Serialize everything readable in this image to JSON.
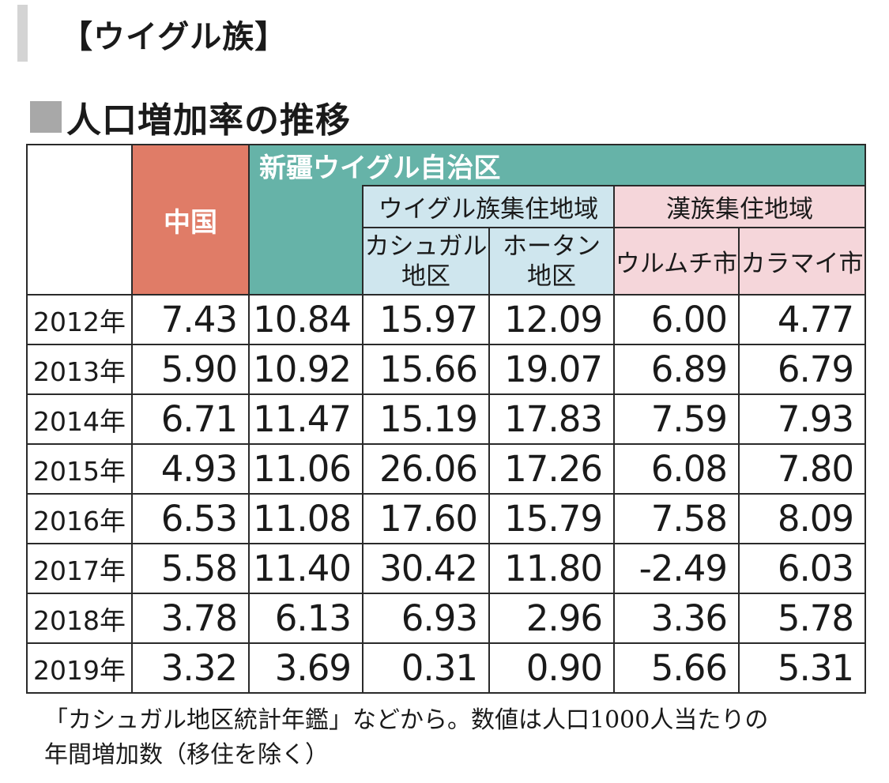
{
  "header": {
    "title": "【ウイグル族】"
  },
  "subtitle": "人口増加率の推移",
  "chart_data": {
    "type": "table",
    "title": "人口増加率の推移",
    "column_groups": {
      "china": "中国",
      "xinjiang": "新疆ウイグル自治区",
      "uyghur_region": "ウイグル族集住地域",
      "han_region": "漢族集住地域"
    },
    "columns": {
      "kashgar_line1": "カシュガル",
      "kashgar_line2": "地区",
      "hotan_line1": "ホータン",
      "hotan_line2": "地区",
      "urumqi": "ウルムチ市",
      "karamay": "カラマイ市"
    },
    "rows": [
      {
        "year": "2012年",
        "values": [
          "7.43",
          "10.84",
          "15.97",
          "12.09",
          "6.00",
          "4.77"
        ]
      },
      {
        "year": "2013年",
        "values": [
          "5.90",
          "10.92",
          "15.66",
          "19.07",
          "6.89",
          "6.79"
        ]
      },
      {
        "year": "2014年",
        "values": [
          "6.71",
          "11.47",
          "15.19",
          "17.83",
          "7.59",
          "7.93"
        ]
      },
      {
        "year": "2015年",
        "values": [
          "4.93",
          "11.06",
          "26.06",
          "17.26",
          "6.08",
          "7.80"
        ]
      },
      {
        "year": "2016年",
        "values": [
          "6.53",
          "11.08",
          "17.60",
          "15.79",
          "7.58",
          "8.09"
        ]
      },
      {
        "year": "2017年",
        "values": [
          "5.58",
          "11.40",
          "30.42",
          "11.80",
          "-2.49",
          "6.03"
        ]
      },
      {
        "year": "2018年",
        "values": [
          "3.78",
          "6.13",
          "6.93",
          "2.96",
          "3.36",
          "5.78"
        ]
      },
      {
        "year": "2019年",
        "values": [
          "3.32",
          "3.69",
          "0.31",
          "0.90",
          "5.66",
          "5.31"
        ]
      }
    ]
  },
  "note": {
    "line1": "「カシュガル地区統計年鑑」などから。数値は人口1000人当たりの",
    "line2": "年間増加数（移住を除く）"
  },
  "colors": {
    "china": "#e07c67",
    "xinjiang": "#66b3a8",
    "uyghur_region": "#cfe6ee",
    "han_region": "#f5d6da"
  }
}
